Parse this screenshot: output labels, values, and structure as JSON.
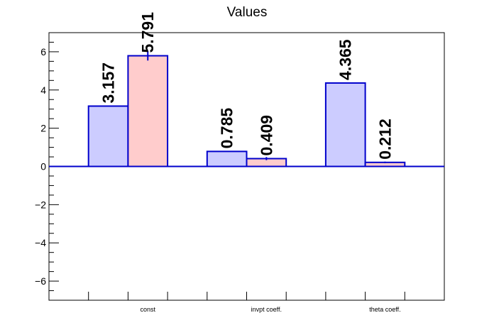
{
  "chart_data": {
    "type": "bar",
    "title": "Values",
    "xlabel": "",
    "ylabel": "",
    "categories": [
      "const",
      "invpt coeff.",
      "theta coeff."
    ],
    "series": [
      {
        "values": [
          3.157,
          0.785,
          4.365
        ],
        "value_labels": [
          "3.157",
          "0.785",
          "4.365"
        ],
        "errors": [
          0.0,
          0.0,
          0.0
        ]
      },
      {
        "values": [
          5.791,
          0.409,
          0.212
        ],
        "value_labels": [
          "5.791",
          "0.409",
          "0.212"
        ],
        "errors": [
          0.25,
          0.08,
          0.04
        ]
      }
    ],
    "ylim": [
      -7,
      7
    ],
    "yticks": [
      -6,
      -4,
      -2,
      0,
      2,
      4,
      6
    ],
    "ytick_labels": [
      "−6",
      "−4",
      "−2",
      "0",
      "2",
      "4",
      "6"
    ],
    "grid": false,
    "legend": "none",
    "colors": {
      "series_fills": [
        "#ccccff",
        "#ffcccc"
      ],
      "bar_outline": "#0000cc",
      "zero_line": "#0000cc",
      "axis": "#000000",
      "value_label": "#000000"
    }
  }
}
